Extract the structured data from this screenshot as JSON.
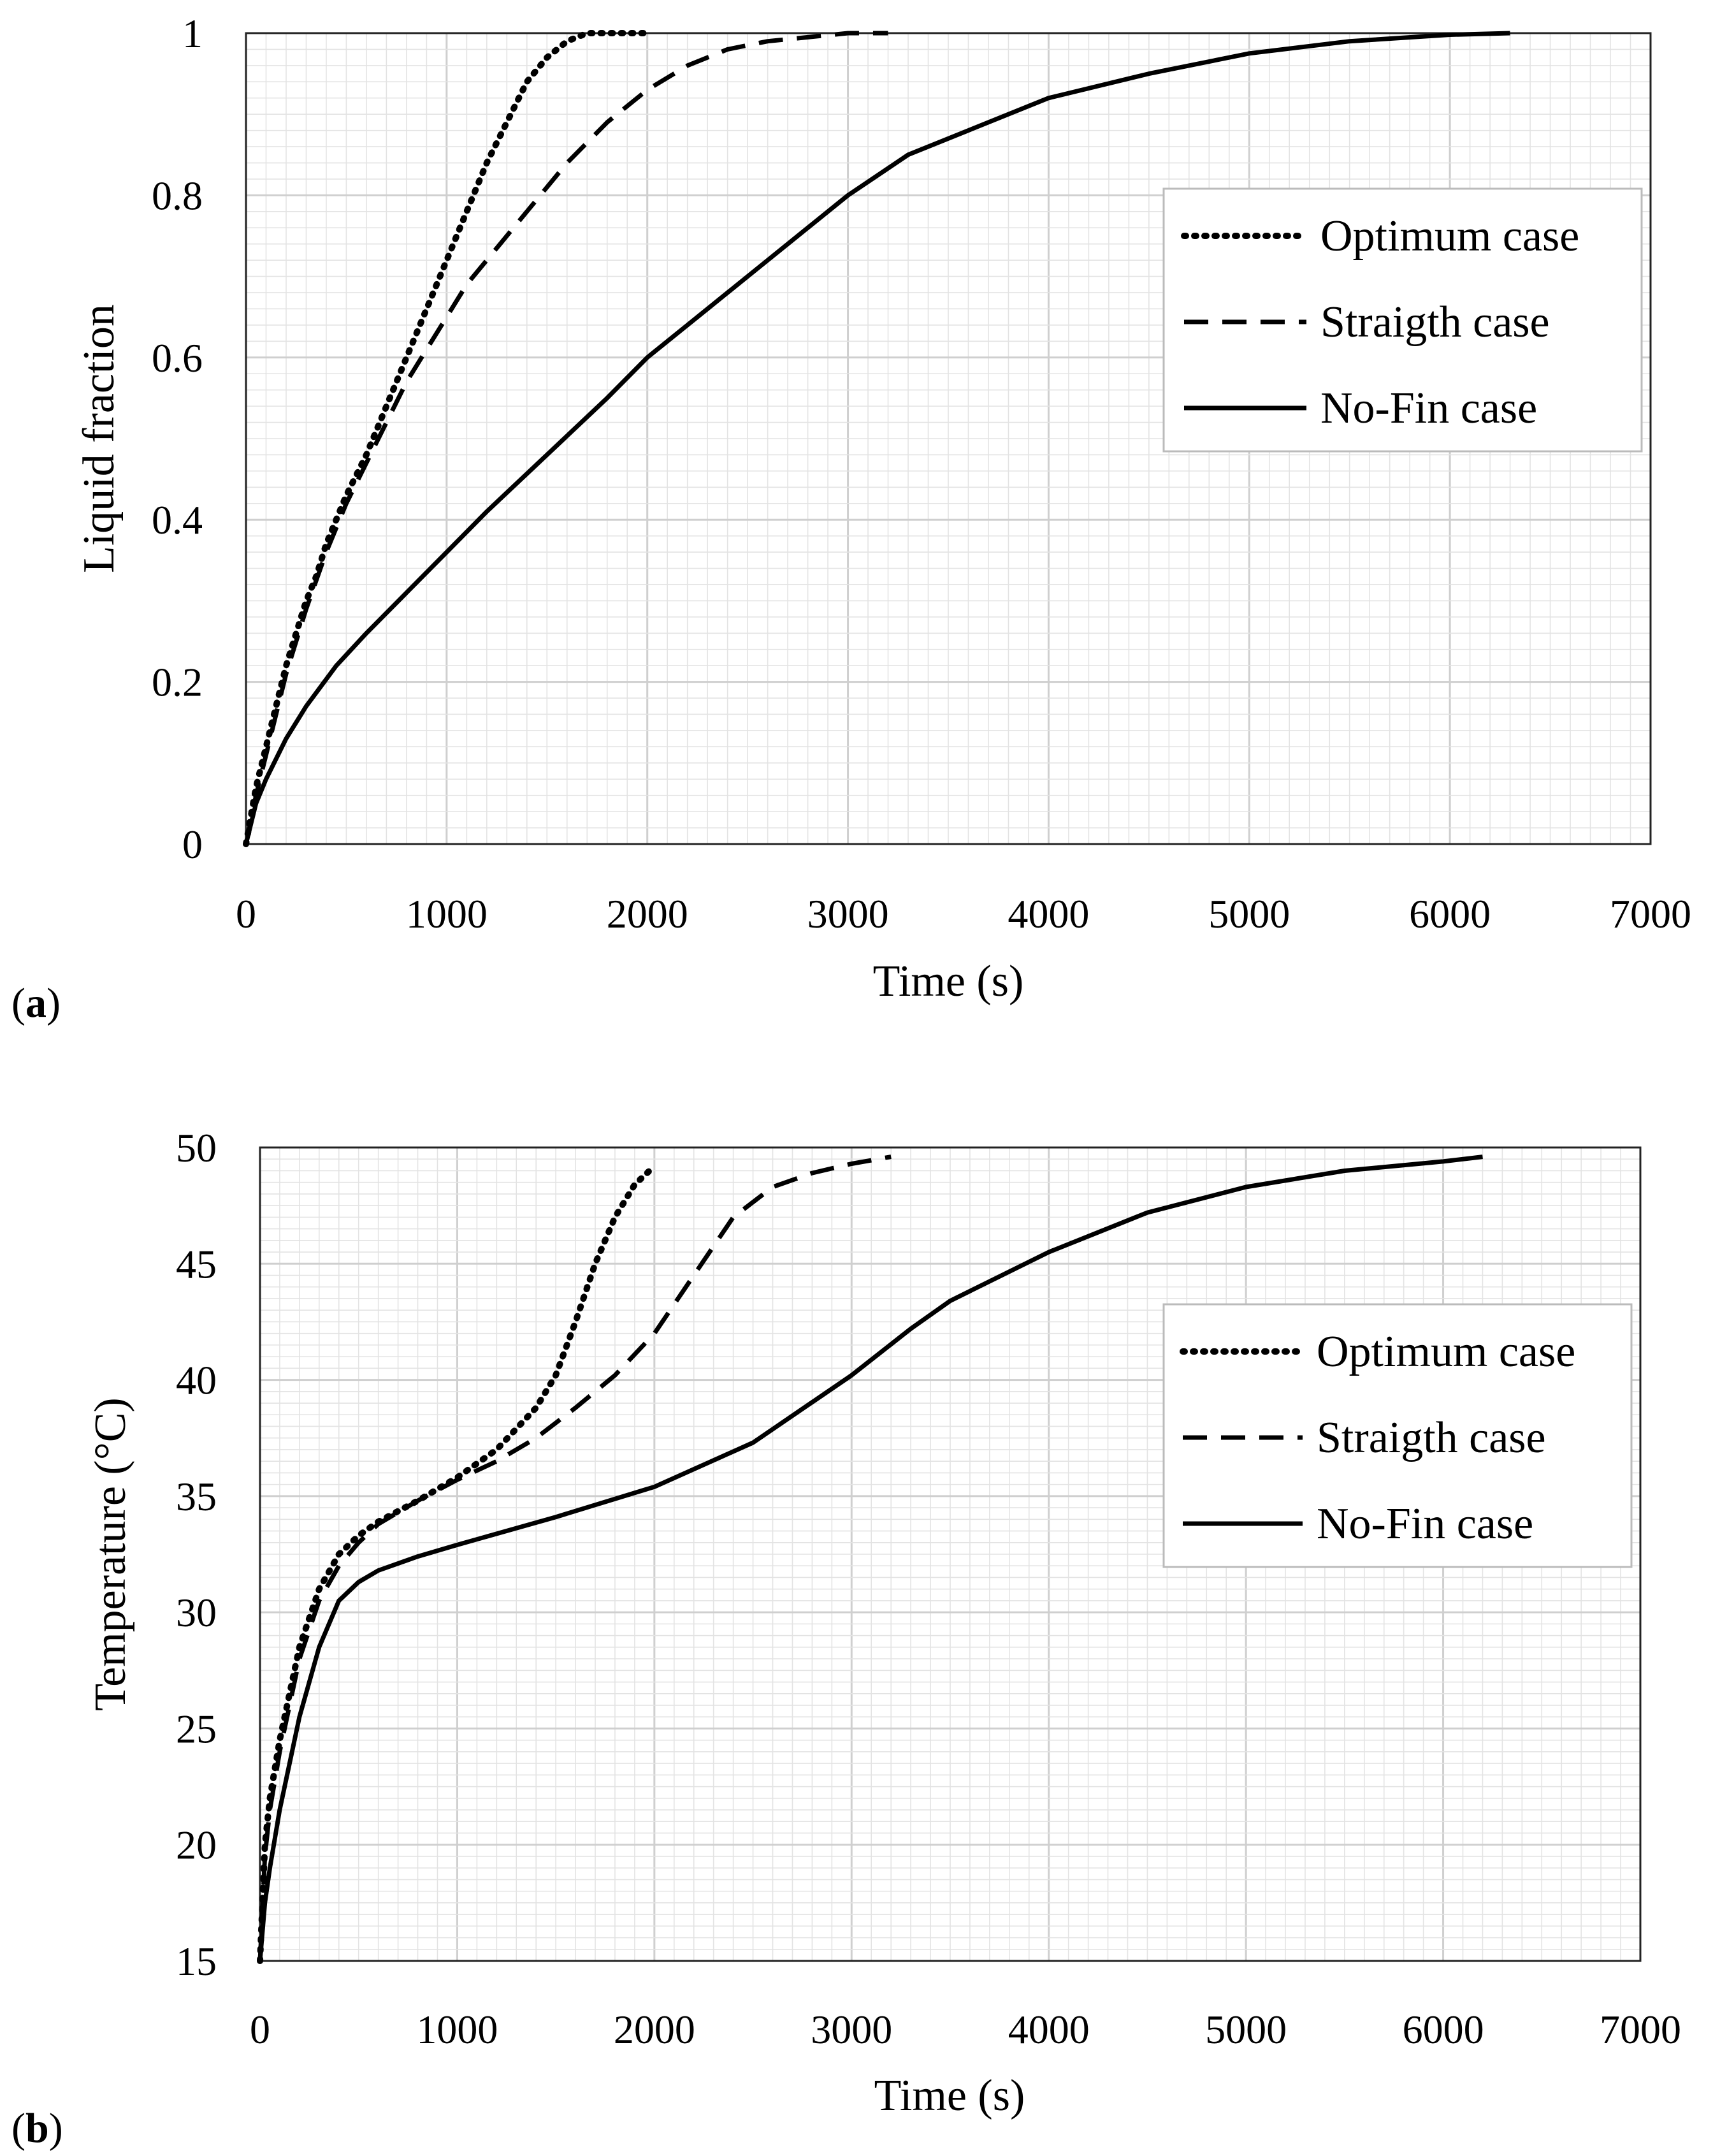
{
  "chart_data": [
    {
      "type": "line",
      "panel_label": "a",
      "title": "",
      "xlabel": "Time (s)",
      "ylabel": "Liquid fraction",
      "xlim": [
        0,
        7000
      ],
      "ylim": [
        0,
        1
      ],
      "xticks": [
        0,
        1000,
        2000,
        3000,
        4000,
        5000,
        6000,
        7000
      ],
      "yticks": [
        0,
        0.2,
        0.4,
        0.6,
        0.8,
        1
      ],
      "ytick_labels": [
        "0",
        "0.2",
        "0.4",
        "0.6",
        "0.8",
        "1"
      ],
      "grid": true,
      "legend_position": "right",
      "series": [
        {
          "name": "Optimum case",
          "style": "dotted",
          "x": [
            0,
            50,
            100,
            150,
            200,
            250,
            300,
            350,
            400,
            500,
            600,
            700,
            800,
            900,
            1000,
            1100,
            1200,
            1300,
            1400,
            1500,
            1600,
            1700,
            1800,
            1900,
            2000
          ],
          "y": [
            0,
            0.07,
            0.12,
            0.17,
            0.22,
            0.26,
            0.3,
            0.33,
            0.37,
            0.43,
            0.48,
            0.54,
            0.6,
            0.66,
            0.72,
            0.78,
            0.84,
            0.89,
            0.94,
            0.97,
            0.99,
            1.0,
            1.0,
            1.0,
            1.0
          ]
        },
        {
          "name": "Straigth case",
          "style": "dashed",
          "x": [
            0,
            50,
            100,
            150,
            200,
            300,
            400,
            500,
            600,
            700,
            800,
            900,
            1000,
            1100,
            1200,
            1400,
            1600,
            1800,
            2000,
            2200,
            2400,
            2600,
            2800,
            3000,
            3200
          ],
          "y": [
            0,
            0.06,
            0.11,
            0.16,
            0.21,
            0.29,
            0.36,
            0.42,
            0.47,
            0.52,
            0.57,
            0.61,
            0.65,
            0.69,
            0.72,
            0.78,
            0.84,
            0.89,
            0.93,
            0.96,
            0.98,
            0.99,
            0.995,
            1.0,
            1.0
          ]
        },
        {
          "name": "No-Fin case",
          "style": "solid",
          "x": [
            0,
            50,
            100,
            200,
            300,
            450,
            600,
            800,
            1000,
            1200,
            1500,
            1800,
            2000,
            2300,
            2600,
            3000,
            3300,
            3600,
            4000,
            4500,
            5000,
            5500,
            6000,
            6300
          ],
          "y": [
            0,
            0.05,
            0.08,
            0.13,
            0.17,
            0.22,
            0.26,
            0.31,
            0.36,
            0.41,
            0.48,
            0.55,
            0.6,
            0.66,
            0.72,
            0.8,
            0.85,
            0.88,
            0.92,
            0.95,
            0.975,
            0.99,
            0.998,
            1.0
          ]
        }
      ]
    },
    {
      "type": "line",
      "panel_label": "b",
      "title": "",
      "xlabel": "Time (s)",
      "ylabel": "Temperature (°C)",
      "xlim": [
        0,
        7000
      ],
      "ylim": [
        15,
        50
      ],
      "xticks": [
        0,
        1000,
        2000,
        3000,
        4000,
        5000,
        6000,
        7000
      ],
      "yticks": [
        15,
        20,
        25,
        30,
        35,
        40,
        45,
        50
      ],
      "ytick_labels": [
        "15",
        "20",
        "25",
        "30",
        "35",
        "40",
        "45",
        "50"
      ],
      "grid": true,
      "legend_position": "right",
      "series": [
        {
          "name": "Optimum case",
          "style": "dotted",
          "x": [
            0,
            25,
            50,
            100,
            150,
            200,
            300,
            400,
            500,
            600,
            800,
            1000,
            1200,
            1400,
            1500,
            1600,
            1700,
            1800,
            1900,
            2000
          ],
          "y": [
            15,
            20,
            22,
            24.5,
            26.5,
            28.5,
            31,
            32.5,
            33.3,
            33.9,
            34.8,
            35.8,
            37,
            38.8,
            40.2,
            42.5,
            45,
            47,
            48.4,
            49.2
          ]
        },
        {
          "name": "Straigth case",
          "style": "dashed",
          "x": [
            0,
            25,
            50,
            100,
            150,
            200,
            300,
            400,
            500,
            600,
            800,
            1000,
            1200,
            1400,
            1600,
            1800,
            2000,
            2200,
            2400,
            2600,
            2800,
            3000,
            3200
          ],
          "y": [
            15,
            19.5,
            21.5,
            24,
            26,
            28,
            30.5,
            32,
            33,
            33.8,
            34.8,
            35.7,
            36.5,
            37.5,
            38.8,
            40.2,
            42,
            44.5,
            47,
            48.3,
            48.9,
            49.3,
            49.6
          ]
        },
        {
          "name": "No-Fin case",
          "style": "solid",
          "x": [
            0,
            25,
            50,
            100,
            150,
            200,
            300,
            400,
            500,
            600,
            800,
            1000,
            1500,
            2000,
            2500,
            3000,
            3300,
            3500,
            4000,
            4500,
            5000,
            5500,
            6000,
            6200
          ],
          "y": [
            15,
            17.5,
            19,
            21.5,
            23.5,
            25.5,
            28.5,
            30.5,
            31.3,
            31.8,
            32.4,
            32.9,
            34.1,
            35.4,
            37.3,
            40.2,
            42.2,
            43.4,
            45.5,
            47.2,
            48.3,
            49,
            49.4,
            49.6
          ]
        }
      ]
    }
  ]
}
